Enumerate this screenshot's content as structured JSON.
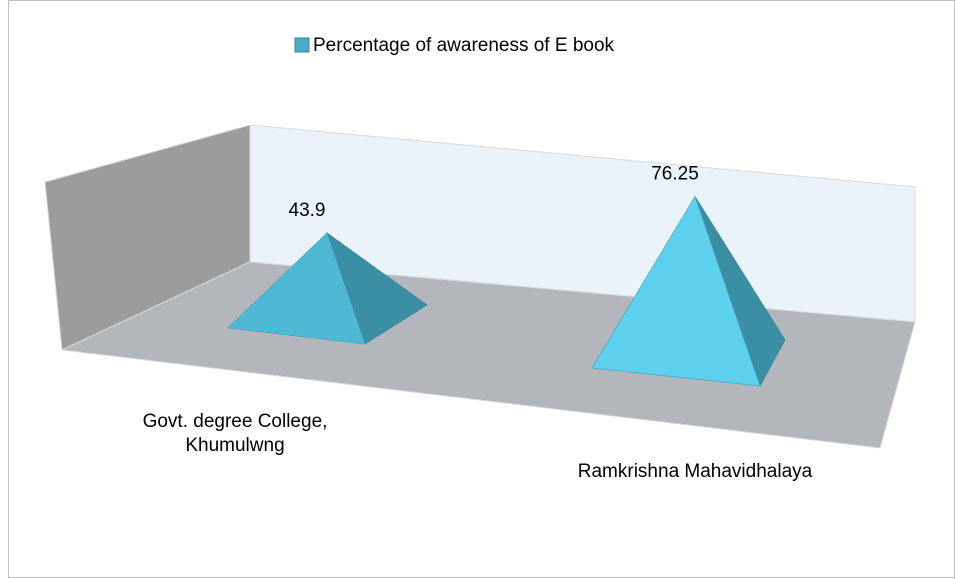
{
  "chart_data": {
    "type": "pyramid3d",
    "categories": [
      "Govt. degree College, Khumulwng",
      "Ramkrishna Mahavidhalaya"
    ],
    "series": [
      {
        "name": "Percentage of awareness of E book",
        "color": "#4bacc6",
        "values": [
          43.9,
          76.25
        ]
      }
    ],
    "legend": "top",
    "data_labels": true
  }
}
